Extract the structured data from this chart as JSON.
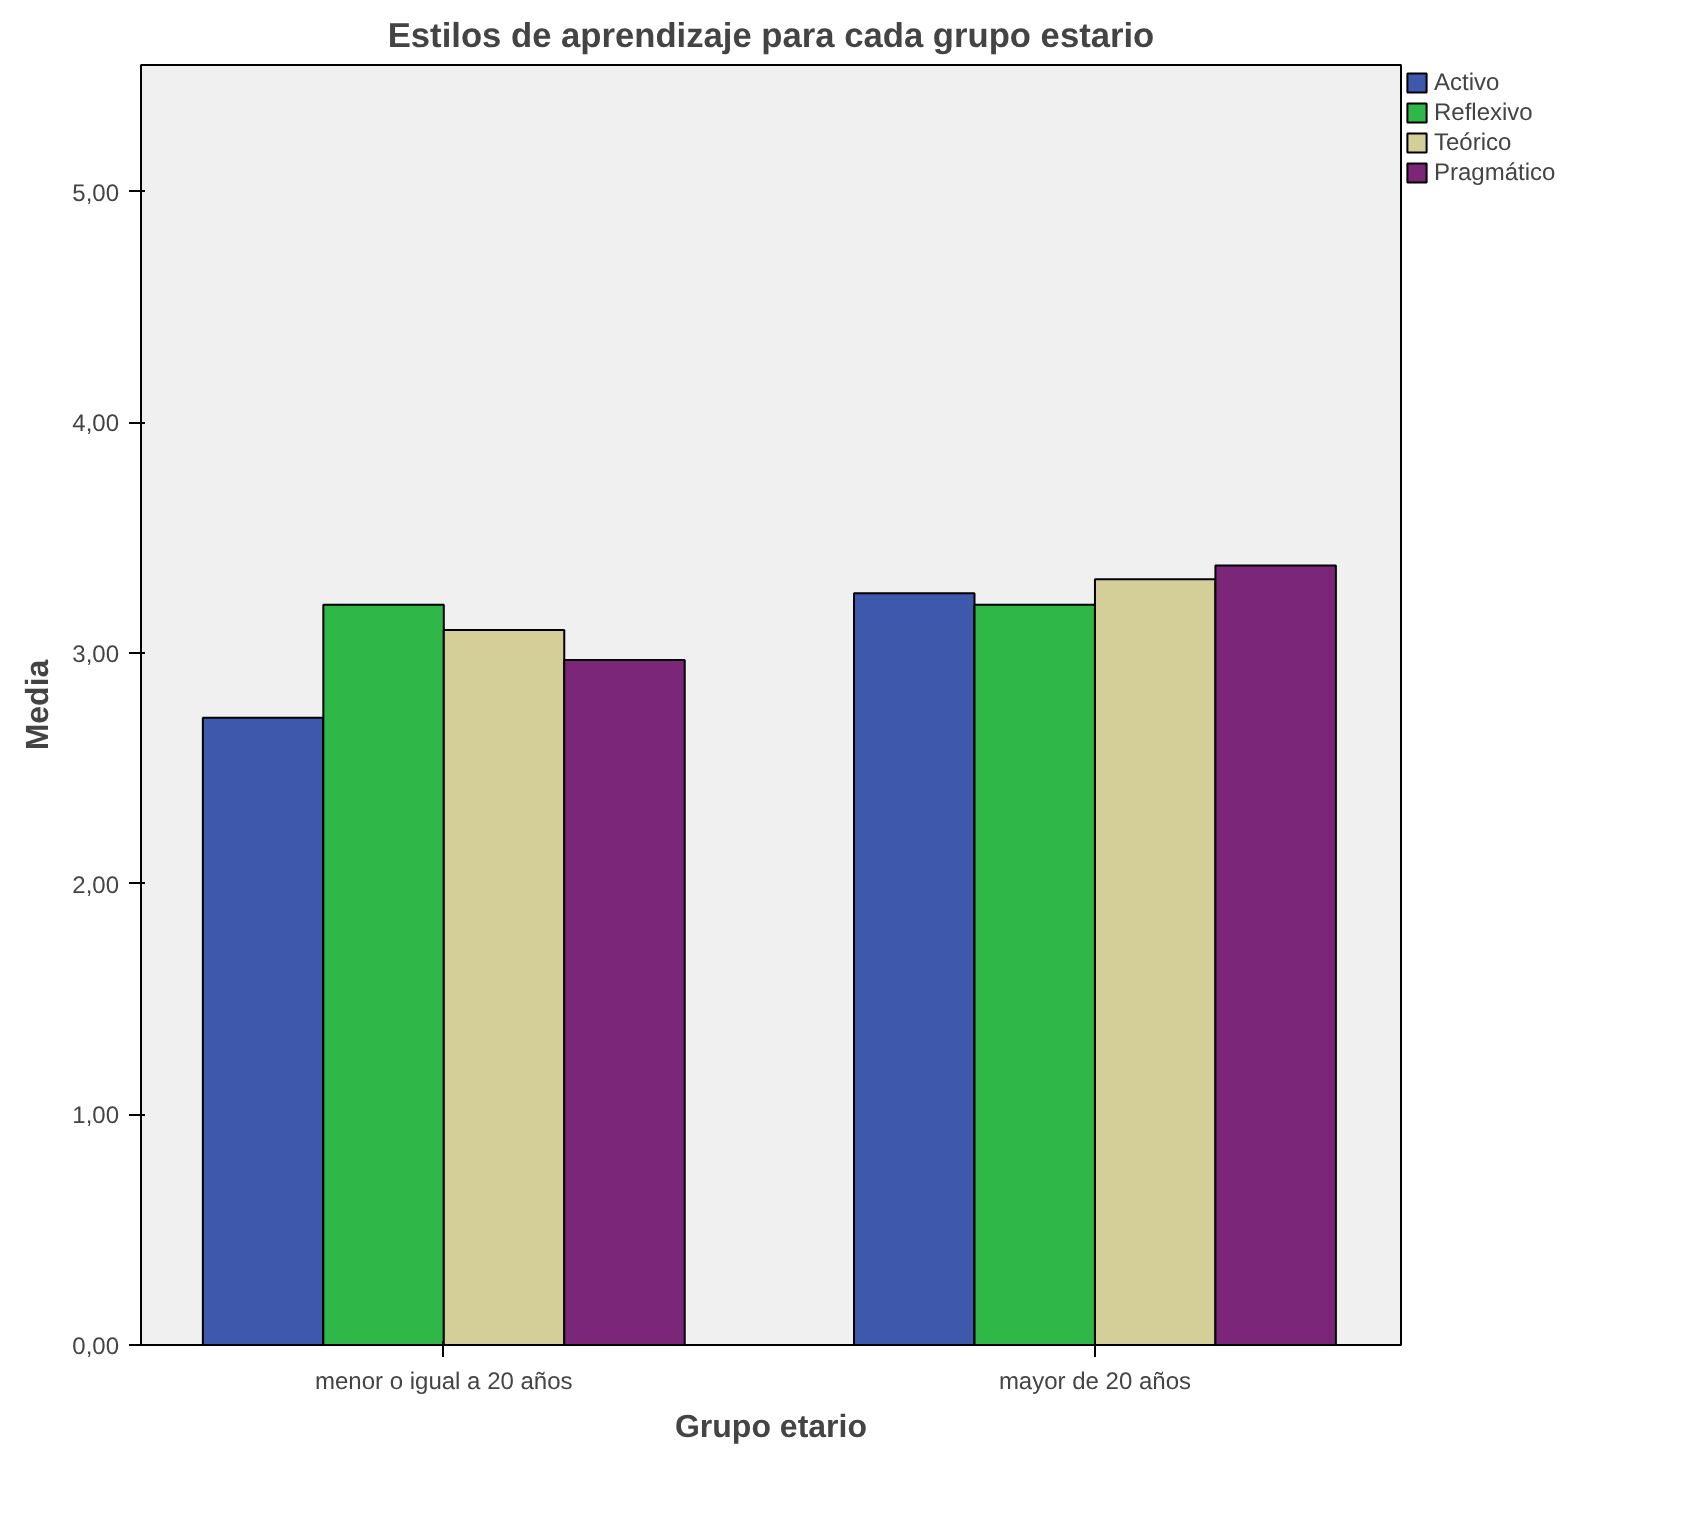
{
  "chart_data": {
    "type": "bar",
    "title": "Estilos de aprendizaje para cada grupo estario",
    "xlabel": "Grupo etario",
    "ylabel": "Media",
    "categories": [
      "menor o igual a 20 años",
      "mayor de 20 años"
    ],
    "series": [
      {
        "name": "Activo",
        "color": "#3e58ac",
        "values": [
          2.72,
          3.26
        ]
      },
      {
        "name": "Reflexivo",
        "color": "#2fb847",
        "values": [
          3.21,
          3.21
        ]
      },
      {
        "name": "Teórico",
        "color": "#d4ce98",
        "values": [
          3.1,
          3.32
        ]
      },
      {
        "name": "Pragmático",
        "color": "#7b2678",
        "values": [
          2.97,
          3.38
        ]
      }
    ],
    "ylim": [
      0,
      5.55
    ],
    "yticks": [
      {
        "value": 0,
        "label": "0,00"
      },
      {
        "value": 1,
        "label": "1,00"
      },
      {
        "value": 2,
        "label": "2,00"
      },
      {
        "value": 3,
        "label": "3,00"
      },
      {
        "value": 4,
        "label": "4,00"
      },
      {
        "value": 5,
        "label": "5,00"
      }
    ],
    "grid": false,
    "legend": "top right"
  }
}
